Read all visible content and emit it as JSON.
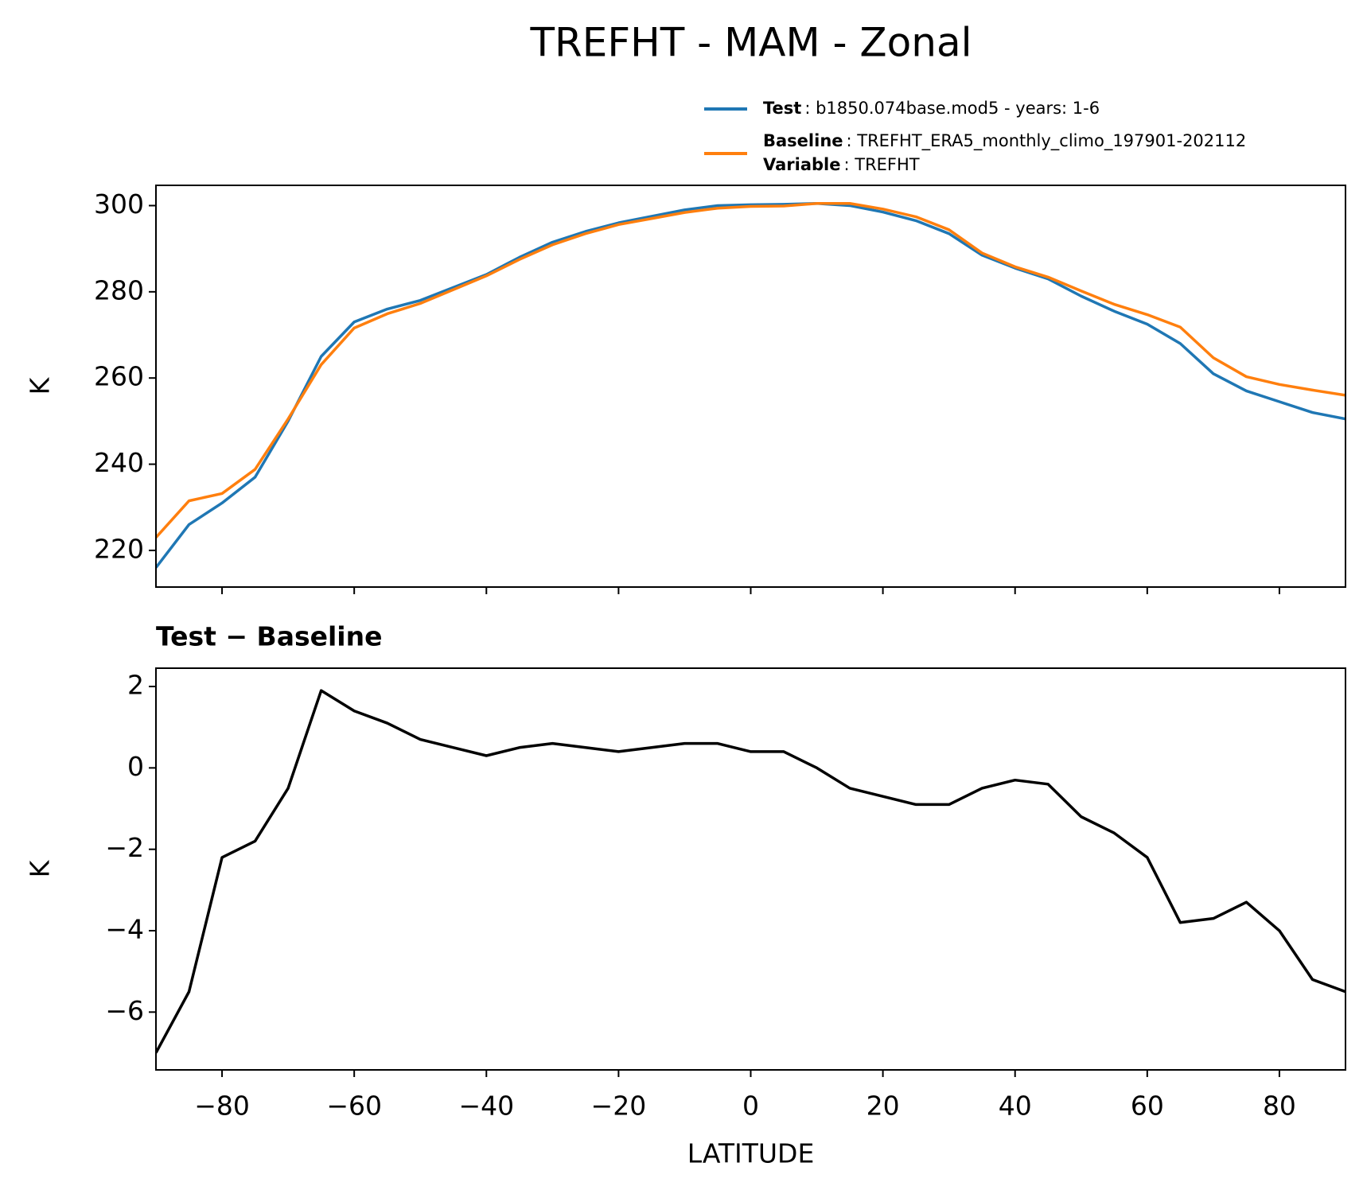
{
  "title": "TREFHT - MAM - Zonal",
  "chart_data": [
    {
      "type": "line",
      "x": [
        -90,
        -85,
        -80,
        -75,
        -70,
        -65,
        -60,
        -55,
        -50,
        -45,
        -40,
        -35,
        -30,
        -25,
        -20,
        -15,
        -10,
        -5,
        0,
        5,
        10,
        15,
        20,
        25,
        30,
        35,
        40,
        45,
        50,
        55,
        60,
        65,
        70,
        75,
        80,
        85,
        90
      ],
      "series": [
        {
          "name": "Test",
          "description": ": b1850.074base.mod5 - years: 1-6",
          "color": "#1f77b4",
          "values": [
            216,
            226,
            231,
            237,
            250,
            265,
            273,
            276,
            278,
            281,
            284,
            288,
            291.5,
            294,
            296,
            297.5,
            299,
            300,
            300.2,
            300.3,
            300.5,
            300,
            298.5,
            296.5,
            293.5,
            288.5,
            285.5,
            283,
            279,
            275.5,
            272.5,
            268,
            261,
            257,
            254.5,
            252,
            250.5
          ]
        },
        {
          "name": "Baseline",
          "description": ": TREFHT_ERA5_monthly_climo_197901-202112",
          "color": "#ff7f0e",
          "values": [
            223,
            231.5,
            233.2,
            238.8,
            250.5,
            263.1,
            271.6,
            274.9,
            277.3,
            280.5,
            283.7,
            287.5,
            290.9,
            293.5,
            295.6,
            297,
            298.4,
            299.4,
            299.8,
            299.9,
            300.5,
            300.5,
            299.2,
            297.4,
            294.4,
            289,
            285.8,
            283.4,
            280.2,
            277.1,
            274.7,
            271.8,
            264.7,
            260.3,
            258.5,
            257.2,
            256
          ]
        }
      ],
      "legend_extra": {
        "key": "Variable",
        "text": ": TREFHT"
      },
      "ylabel": "K",
      "xlim": [
        -90,
        90
      ],
      "xticks": [
        -80,
        -60,
        -40,
        -20,
        0,
        20,
        40,
        60,
        80
      ],
      "ylim": [
        211.5,
        304.7
      ],
      "yticks": [
        220,
        240,
        260,
        280,
        300
      ]
    },
    {
      "type": "line",
      "title": "Test − Baseline",
      "x": [
        -90,
        -85,
        -80,
        -75,
        -70,
        -65,
        -60,
        -55,
        -50,
        -45,
        -40,
        -35,
        -30,
        -25,
        -20,
        -15,
        -10,
        -5,
        0,
        5,
        10,
        15,
        20,
        25,
        30,
        35,
        40,
        45,
        50,
        55,
        60,
        65,
        70,
        75,
        80,
        85,
        90
      ],
      "series": [
        {
          "color": "#000000",
          "values": [
            -7,
            -5.5,
            -2.2,
            -1.8,
            -0.5,
            1.9,
            1.4,
            1.1,
            0.7,
            0.5,
            0.3,
            0.5,
            0.6,
            0.5,
            0.4,
            0.5,
            0.6,
            0.6,
            0.4,
            0.4,
            0,
            -0.5,
            -0.7,
            -0.9,
            -0.9,
            -0.5,
            -0.3,
            -0.4,
            -1.2,
            -1.6,
            -2.2,
            -3.8,
            -3.7,
            -3.3,
            -4,
            -5.2,
            -5.5
          ]
        }
      ],
      "ylabel": "K",
      "xlabel": "LATITUDE",
      "xlim": [
        -90,
        90
      ],
      "xticks": [
        {
          "value": -80,
          "label": "−80"
        },
        {
          "value": -60,
          "label": "−60"
        },
        {
          "value": -40,
          "label": "−40"
        },
        {
          "value": -20,
          "label": "−20"
        },
        0,
        20,
        40,
        60,
        80
      ],
      "ylim": [
        -7.42,
        2.45
      ],
      "yticks": [
        {
          "value": -6,
          "label": "−6"
        },
        {
          "value": -4,
          "label": "−4"
        },
        {
          "value": -2,
          "label": "−2"
        },
        0,
        2
      ]
    }
  ]
}
